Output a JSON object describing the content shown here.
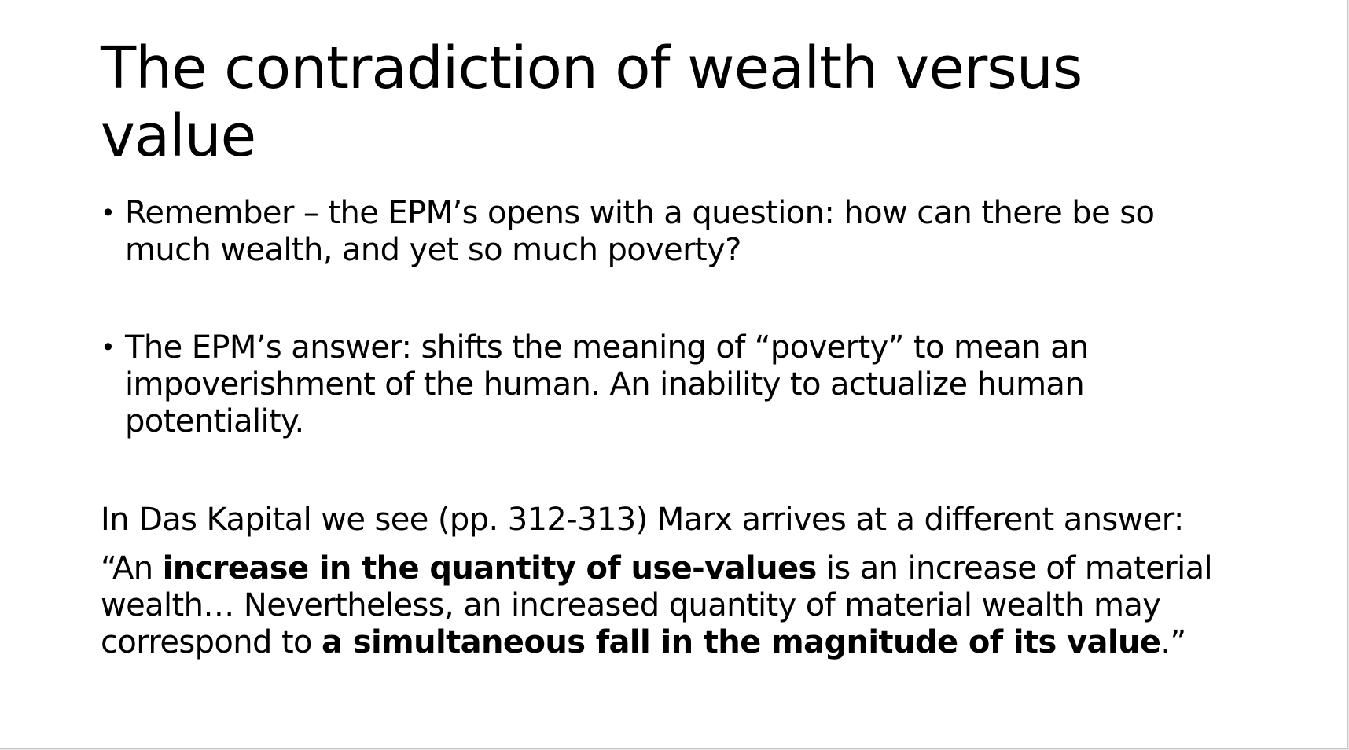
{
  "slide": {
    "title": "The contradiction of wealth versus value",
    "bullets": [
      {
        "marker": "•",
        "text": "Remember – the EPM’s opens with a question: how can there be so much wealth, and yet so much poverty?"
      },
      {
        "marker": "•",
        "text": "The EPM’s answer: shifts the meaning of “poverty” to mean an impoverishment of the human. An inability to actualize human potentiality."
      }
    ],
    "intro": "In Das Kapital we see (pp. 312-313) Marx arrives at a different answer:",
    "quote": {
      "open": "“An ",
      "bold1": "increase in the quantity of use-values",
      "middle": " is an increase of material wealth… Nevertheless, an increased quantity of material wealth may correspond to ",
      "bold2": "a simultaneous fall in the magnitude of its value",
      "close": ".”"
    }
  }
}
